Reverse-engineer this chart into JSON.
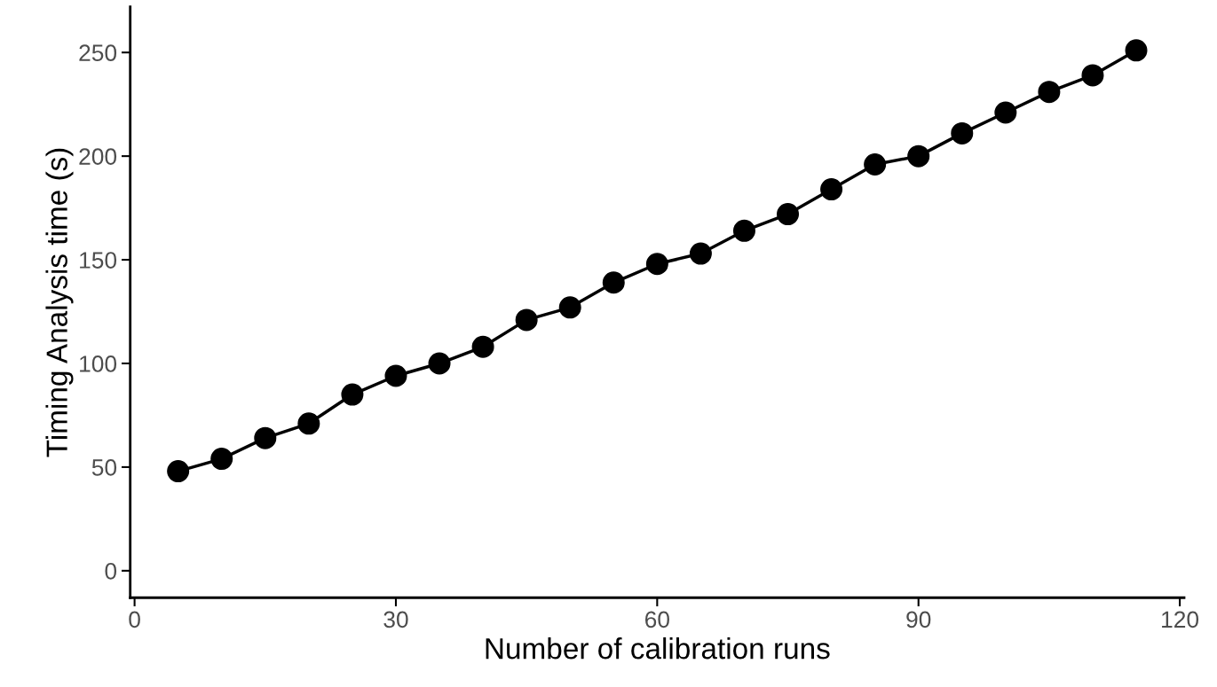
{
  "chart_data": {
    "type": "line",
    "xlabel": "Number of calibration runs",
    "ylabel": "Timing Analysis time (s)",
    "x": [
      5,
      10,
      15,
      20,
      25,
      30,
      35,
      40,
      45,
      50,
      55,
      60,
      65,
      70,
      75,
      80,
      85,
      90,
      95,
      100,
      105,
      110,
      115
    ],
    "series": [
      {
        "color": "#000000",
        "values": [
          48,
          54,
          64,
          71,
          85,
          94,
          100,
          108,
          121,
          127,
          139,
          148,
          153,
          164,
          172,
          184,
          196,
          200,
          211,
          221,
          231,
          239,
          251
        ]
      }
    ],
    "marker": "circle",
    "line_style": "solid",
    "grid": false,
    "legend": false,
    "xlim": [
      -0.5,
      120.5
    ],
    "xticks": [
      0,
      30,
      60,
      90,
      120
    ],
    "ylim": [
      -13,
      272
    ],
    "yticks": [
      0,
      50,
      100,
      150,
      200,
      250
    ]
  }
}
